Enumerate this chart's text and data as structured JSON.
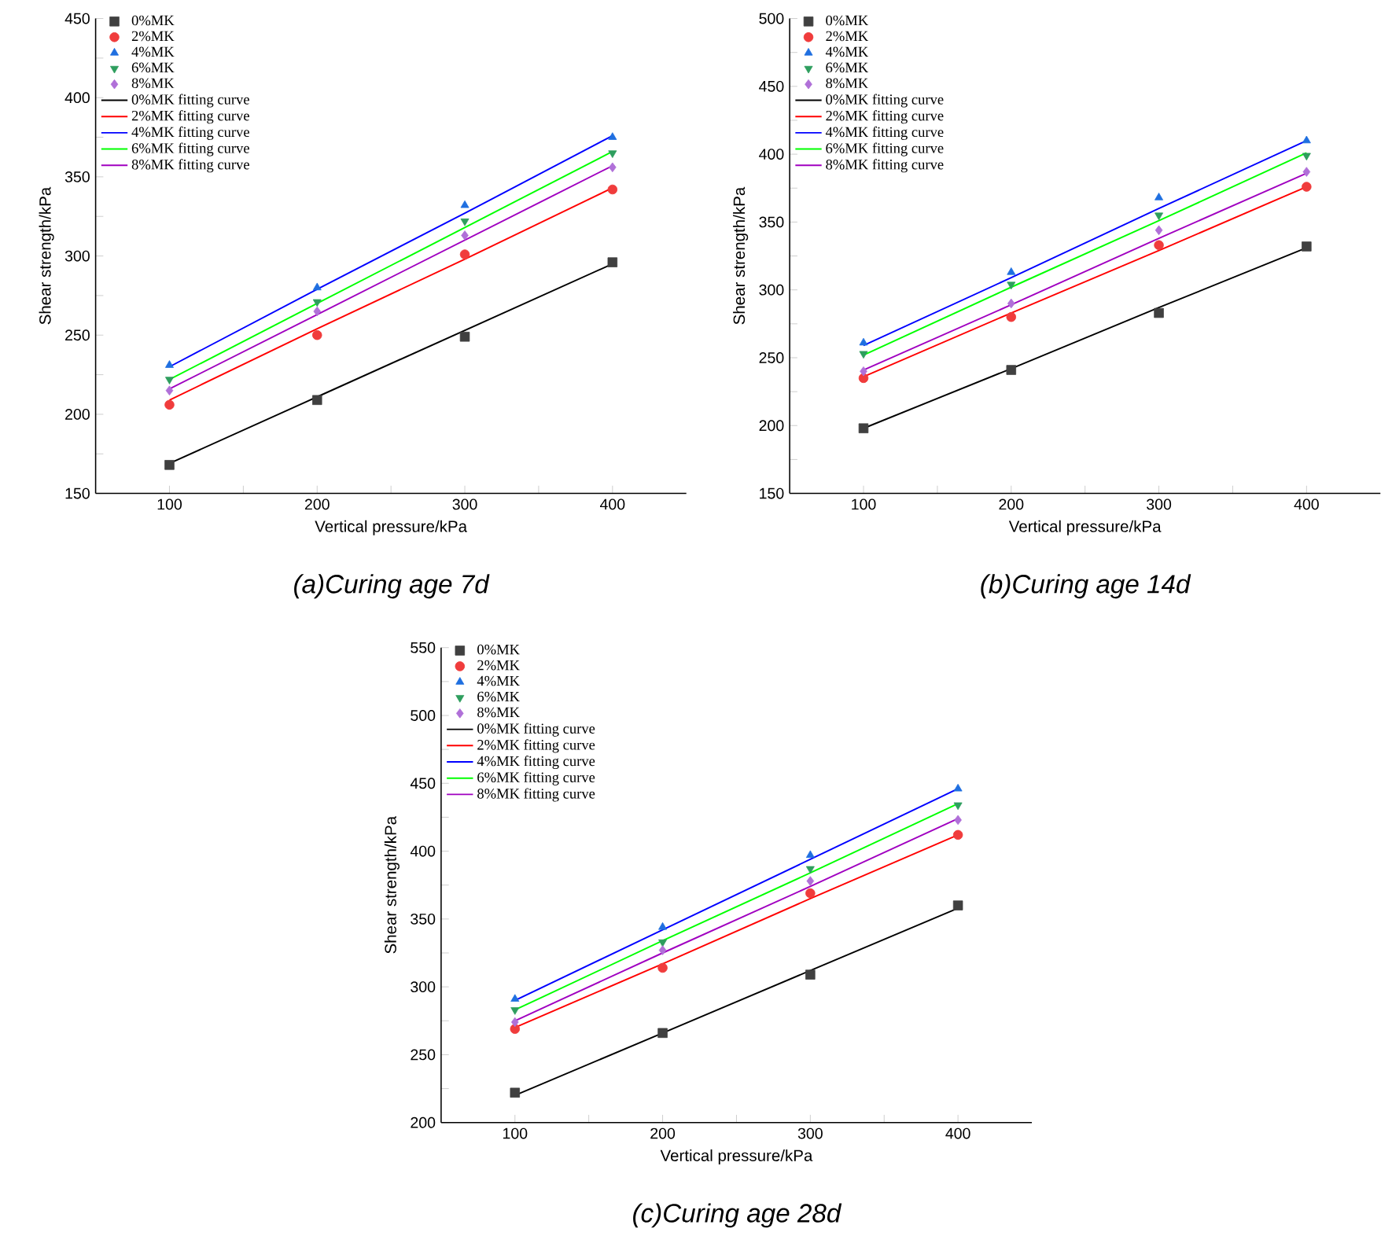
{
  "chart_data": [
    {
      "type": "scatter",
      "title": "(a)Curing age 7d",
      "xlabel": "Vertical pressure/kPa",
      "ylabel": "Shear strength/kPa",
      "legend": "top left",
      "x": [
        100,
        200,
        300,
        400
      ],
      "xlim": [
        50,
        450
      ],
      "ylim": [
        150,
        450
      ],
      "xticks": [
        100,
        {
          "value": 150,
          "label": null
        },
        200,
        {
          "value": 250,
          "label": null
        },
        300,
        {
          "value": 350,
          "label": null
        },
        400
      ],
      "yticks": [
        150,
        {
          "value": 175,
          "label": null
        },
        200,
        {
          "value": 225,
          "label": null
        },
        250,
        {
          "value": 275,
          "label": null
        },
        300,
        {
          "value": 325,
          "label": null
        },
        350,
        {
          "value": 375,
          "label": null
        },
        400,
        {
          "value": 425,
          "label": null
        },
        450
      ],
      "series": [
        {
          "name": "0%MK",
          "marker": "square",
          "color": "#404040",
          "values": [
            168,
            209,
            249,
            296
          ]
        },
        {
          "name": "2%MK",
          "marker": "circle",
          "color": "#f03c3c",
          "values": [
            206,
            250,
            301,
            342
          ]
        },
        {
          "name": "4%MK",
          "marker": "triangle",
          "color": "#1f6fe0",
          "values": [
            231,
            280,
            332,
            375
          ]
        },
        {
          "name": "6%MK",
          "marker": "triangle-down",
          "color": "#2e9e5e",
          "values": [
            222,
            271,
            322,
            365
          ]
        },
        {
          "name": "8%MK",
          "marker": "diamond",
          "color": "#b070d8",
          "values": [
            215,
            265,
            313,
            356
          ]
        },
        {
          "name": "0%MK fitting curve",
          "type": "line",
          "color": "#000000",
          "values": [
            169,
            211,
            253,
            295
          ]
        },
        {
          "name": "2%MK fitting curve",
          "type": "line",
          "color": "#ff0000",
          "values": [
            209,
            254,
            298,
            343
          ]
        },
        {
          "name": "4%MK fitting curve",
          "type": "line",
          "color": "#0000ff",
          "values": [
            230,
            279,
            327,
            376
          ]
        },
        {
          "name": "6%MK fitting curve",
          "type": "line",
          "color": "#00ff00",
          "values": [
            222,
            270,
            318,
            366
          ]
        },
        {
          "name": "8%MK fitting curve",
          "type": "line",
          "color": "#a000c0",
          "values": [
            216,
            263,
            310,
            357
          ]
        }
      ]
    },
    {
      "type": "scatter",
      "title": "(b)Curing age 14d",
      "xlabel": "Vertical pressure/kPa",
      "ylabel": "Shear strength/kPa",
      "legend": "top left",
      "x": [
        100,
        200,
        300,
        400
      ],
      "xlim": [
        50,
        450
      ],
      "ylim": [
        150,
        500
      ],
      "xticks": [
        100,
        {
          "value": 150,
          "label": null
        },
        200,
        {
          "value": 250,
          "label": null
        },
        300,
        {
          "value": 350,
          "label": null
        },
        400
      ],
      "yticks": [
        150,
        {
          "value": 175,
          "label": null
        },
        200,
        {
          "value": 225,
          "label": null
        },
        250,
        {
          "value": 275,
          "label": null
        },
        300,
        {
          "value": 325,
          "label": null
        },
        350,
        {
          "value": 375,
          "label": null
        },
        400,
        {
          "value": 425,
          "label": null
        },
        450,
        {
          "value": 475,
          "label": null
        },
        500
      ],
      "series": [
        {
          "name": "0%MK",
          "marker": "square",
          "color": "#404040",
          "values": [
            198,
            241,
            283,
            332
          ]
        },
        {
          "name": "2%MK",
          "marker": "circle",
          "color": "#f03c3c",
          "values": [
            235,
            280,
            333,
            376
          ]
        },
        {
          "name": "4%MK",
          "marker": "triangle",
          "color": "#1f6fe0",
          "values": [
            261,
            313,
            368,
            410
          ]
        },
        {
          "name": "6%MK",
          "marker": "triangle-down",
          "color": "#2e9e5e",
          "values": [
            253,
            304,
            355,
            399
          ]
        },
        {
          "name": "8%MK",
          "marker": "diamond",
          "color": "#b070d8",
          "values": [
            240,
            290,
            344,
            387
          ]
        },
        {
          "name": "0%MK fitting curve",
          "type": "line",
          "color": "#000000",
          "values": [
            198,
            242,
            287,
            331
          ]
        },
        {
          "name": "2%MK fitting curve",
          "type": "line",
          "color": "#ff0000",
          "values": [
            236,
            283,
            329,
            376
          ]
        },
        {
          "name": "4%MK fitting curve",
          "type": "line",
          "color": "#0000ff",
          "values": [
            259,
            309,
            360,
            410
          ]
        },
        {
          "name": "6%MK fitting curve",
          "type": "line",
          "color": "#00ff00",
          "values": [
            252,
            302,
            351,
            401
          ]
        },
        {
          "name": "8%MK fitting curve",
          "type": "line",
          "color": "#a000c0",
          "values": [
            241,
            289,
            338,
            386
          ]
        }
      ]
    },
    {
      "type": "scatter",
      "title": "(c)Curing age 28d",
      "xlabel": "Vertical pressure/kPa",
      "ylabel": "Shear strength/kPa",
      "legend": "top left",
      "x": [
        100,
        200,
        300,
        400
      ],
      "xlim": [
        50,
        450
      ],
      "ylim": [
        200,
        550
      ],
      "xticks": [
        100,
        {
          "value": 150,
          "label": null
        },
        200,
        {
          "value": 250,
          "label": null
        },
        300,
        {
          "value": 350,
          "label": null
        },
        400
      ],
      "yticks": [
        200,
        {
          "value": 225,
          "label": null
        },
        250,
        {
          "value": 275,
          "label": null
        },
        300,
        {
          "value": 325,
          "label": null
        },
        350,
        {
          "value": 375,
          "label": null
        },
        400,
        {
          "value": 425,
          "label": null
        },
        450,
        {
          "value": 475,
          "label": null
        },
        500,
        {
          "value": 525,
          "label": null
        },
        550
      ],
      "series": [
        {
          "name": "0%MK",
          "marker": "square",
          "color": "#404040",
          "values": [
            222,
            266,
            309,
            360
          ]
        },
        {
          "name": "2%MK",
          "marker": "circle",
          "color": "#f03c3c",
          "values": [
            269,
            314,
            369,
            412
          ]
        },
        {
          "name": "4%MK",
          "marker": "triangle",
          "color": "#1f6fe0",
          "values": [
            291,
            344,
            397,
            446
          ]
        },
        {
          "name": "6%MK",
          "marker": "triangle-down",
          "color": "#2e9e5e",
          "values": [
            283,
            333,
            387,
            434
          ]
        },
        {
          "name": "8%MK",
          "marker": "diamond",
          "color": "#b070d8",
          "values": [
            274,
            327,
            378,
            423
          ]
        },
        {
          "name": "0%MK fitting curve",
          "type": "line",
          "color": "#000000",
          "values": [
            220,
            266,
            312,
            358
          ]
        },
        {
          "name": "2%MK fitting curve",
          "type": "line",
          "color": "#ff0000",
          "values": [
            270,
            317,
            365,
            412
          ]
        },
        {
          "name": "4%MK fitting curve",
          "type": "line",
          "color": "#0000ff",
          "values": [
            290,
            342,
            394,
            446
          ]
        },
        {
          "name": "6%MK fitting curve",
          "type": "line",
          "color": "#00ff00",
          "values": [
            283,
            334,
            384,
            435
          ]
        },
        {
          "name": "8%MK fitting curve",
          "type": "line",
          "color": "#a000c0",
          "values": [
            275,
            325,
            374,
            424
          ]
        }
      ]
    }
  ]
}
